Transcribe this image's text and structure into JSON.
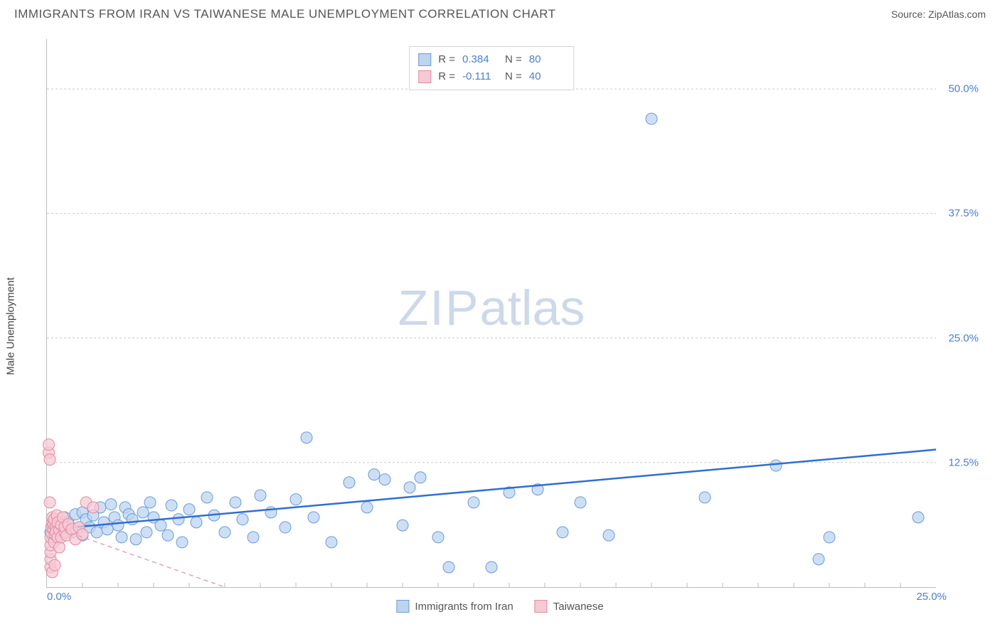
{
  "header": {
    "title": "IMMIGRANTS FROM IRAN VS TAIWANESE MALE UNEMPLOYMENT CORRELATION CHART",
    "source": "Source: ZipAtlas.com"
  },
  "ylabel": "Male Unemployment",
  "watermark": {
    "bold": "ZIP",
    "light": "atlas"
  },
  "chart": {
    "type": "scatter",
    "xlim": [
      0,
      25
    ],
    "ylim": [
      0,
      55
    ],
    "background_color": "#ffffff",
    "grid_color": "#cccccc",
    "grid_dash": "3 3",
    "yticks": [
      {
        "v": 12.5,
        "label": "12.5%"
      },
      {
        "v": 25.0,
        "label": "25.0%"
      },
      {
        "v": 37.5,
        "label": "37.5%"
      },
      {
        "v": 50.0,
        "label": "50.0%"
      }
    ],
    "xticks_minor": [
      1.0,
      2.0,
      3.0,
      4.0,
      5.0,
      6.0,
      7.0,
      8.0,
      9.0,
      10.0,
      11.0,
      12.0,
      13.0,
      14.0,
      15.0,
      16.0,
      17.0,
      18.0,
      19.0,
      20.0,
      21.0,
      22.0,
      23.0,
      24.0
    ],
    "x_origin_label": "0.0%",
    "x_max_label": "25.0%",
    "marker_radius": 8,
    "series": [
      {
        "name": "Immigrants from Iran",
        "color_fill": "#bcd4f0",
        "color_stroke": "#6a9bd8",
        "class": "pt-blue",
        "points": [
          [
            0.1,
            5.5
          ],
          [
            0.15,
            5.2
          ],
          [
            0.15,
            6.0
          ],
          [
            0.2,
            4.8
          ],
          [
            0.2,
            5.7
          ],
          [
            0.25,
            6.3
          ],
          [
            0.3,
            5.0
          ],
          [
            0.3,
            6.5
          ],
          [
            0.35,
            6.2
          ],
          [
            0.4,
            5.3
          ],
          [
            0.4,
            6.0
          ],
          [
            0.5,
            5.8
          ],
          [
            0.5,
            7.0
          ],
          [
            0.6,
            6.5
          ],
          [
            0.7,
            5.5
          ],
          [
            0.8,
            7.3
          ],
          [
            0.9,
            6.0
          ],
          [
            1.0,
            7.5
          ],
          [
            1.0,
            5.2
          ],
          [
            1.1,
            6.8
          ],
          [
            1.2,
            6.0
          ],
          [
            1.3,
            7.2
          ],
          [
            1.4,
            5.5
          ],
          [
            1.5,
            8.0
          ],
          [
            1.6,
            6.5
          ],
          [
            1.7,
            5.8
          ],
          [
            1.8,
            8.3
          ],
          [
            1.9,
            7.0
          ],
          [
            2.0,
            6.2
          ],
          [
            2.1,
            5.0
          ],
          [
            2.2,
            8.0
          ],
          [
            2.3,
            7.3
          ],
          [
            2.4,
            6.8
          ],
          [
            2.5,
            4.8
          ],
          [
            2.7,
            7.5
          ],
          [
            2.8,
            5.5
          ],
          [
            2.9,
            8.5
          ],
          [
            3.0,
            7.0
          ],
          [
            3.2,
            6.2
          ],
          [
            3.4,
            5.2
          ],
          [
            3.5,
            8.2
          ],
          [
            3.7,
            6.8
          ],
          [
            3.8,
            4.5
          ],
          [
            4.0,
            7.8
          ],
          [
            4.2,
            6.5
          ],
          [
            4.5,
            9.0
          ],
          [
            4.7,
            7.2
          ],
          [
            5.0,
            5.5
          ],
          [
            5.3,
            8.5
          ],
          [
            5.5,
            6.8
          ],
          [
            5.8,
            5.0
          ],
          [
            6.0,
            9.2
          ],
          [
            6.3,
            7.5
          ],
          [
            6.7,
            6.0
          ],
          [
            7.0,
            8.8
          ],
          [
            7.3,
            15.0
          ],
          [
            7.5,
            7.0
          ],
          [
            8.0,
            4.5
          ],
          [
            8.5,
            10.5
          ],
          [
            9.0,
            8.0
          ],
          [
            9.2,
            11.3
          ],
          [
            9.5,
            10.8
          ],
          [
            10.0,
            6.2
          ],
          [
            10.2,
            10.0
          ],
          [
            10.5,
            11.0
          ],
          [
            11.0,
            5.0
          ],
          [
            11.3,
            2.0
          ],
          [
            12.0,
            8.5
          ],
          [
            12.5,
            2.0
          ],
          [
            13.0,
            9.5
          ],
          [
            13.8,
            9.8
          ],
          [
            14.5,
            5.5
          ],
          [
            15.0,
            8.5
          ],
          [
            15.8,
            5.2
          ],
          [
            17.0,
            47.0
          ],
          [
            18.5,
            9.0
          ],
          [
            20.5,
            12.2
          ],
          [
            21.7,
            2.8
          ],
          [
            22.0,
            5.0
          ],
          [
            24.5,
            7.0
          ]
        ],
        "trend": {
          "x1": 0.1,
          "y1": 5.8,
          "x2": 25.0,
          "y2": 13.8,
          "class": "trend-blue"
        }
      },
      {
        "name": "Taiwanese",
        "color_fill": "#f7c9d4",
        "color_stroke": "#e28aa3",
        "class": "pt-pink",
        "points": [
          [
            0.05,
            13.5
          ],
          [
            0.05,
            14.3
          ],
          [
            0.08,
            12.8
          ],
          [
            0.08,
            8.5
          ],
          [
            0.1,
            2.0
          ],
          [
            0.1,
            2.8
          ],
          [
            0.1,
            3.5
          ],
          [
            0.1,
            4.2
          ],
          [
            0.1,
            5.0
          ],
          [
            0.12,
            5.5
          ],
          [
            0.12,
            6.0
          ],
          [
            0.15,
            6.5
          ],
          [
            0.15,
            7.0
          ],
          [
            0.15,
            1.5
          ],
          [
            0.18,
            5.8
          ],
          [
            0.18,
            6.3
          ],
          [
            0.2,
            6.8
          ],
          [
            0.2,
            4.5
          ],
          [
            0.22,
            5.3
          ],
          [
            0.22,
            2.2
          ],
          [
            0.25,
            6.0
          ],
          [
            0.25,
            5.5
          ],
          [
            0.28,
            7.2
          ],
          [
            0.3,
            5.0
          ],
          [
            0.3,
            6.5
          ],
          [
            0.35,
            5.7
          ],
          [
            0.35,
            4.0
          ],
          [
            0.4,
            6.2
          ],
          [
            0.4,
            5.0
          ],
          [
            0.45,
            7.0
          ],
          [
            0.5,
            5.5
          ],
          [
            0.5,
            6.0
          ],
          [
            0.55,
            5.2
          ],
          [
            0.6,
            6.3
          ],
          [
            0.7,
            5.8
          ],
          [
            0.8,
            4.8
          ],
          [
            0.9,
            6.0
          ],
          [
            1.0,
            5.3
          ],
          [
            1.1,
            8.5
          ],
          [
            1.3,
            8.0
          ]
        ],
        "trend": {
          "x1": 0.05,
          "y1": 6.2,
          "x2": 5.0,
          "y2": 0.0,
          "class": "trend-pink"
        }
      }
    ]
  },
  "stats_box": {
    "rows": [
      {
        "swatch_fill": "#bcd4f0",
        "swatch_stroke": "#6a9bd8",
        "r_label": "R =",
        "r_value": "0.384",
        "n_label": "N =",
        "n_value": "80"
      },
      {
        "swatch_fill": "#f7c9d4",
        "swatch_stroke": "#e28aa3",
        "r_label": "R =",
        "r_value": "-0.111",
        "n_label": "N =",
        "n_value": "40"
      }
    ]
  },
  "bottom_legend": {
    "items": [
      {
        "swatch_fill": "#bcd4f0",
        "swatch_stroke": "#6a9bd8",
        "label": "Immigrants from Iran"
      },
      {
        "swatch_fill": "#f7c9d4",
        "swatch_stroke": "#e28aa3",
        "label": "Taiwanese"
      }
    ]
  }
}
